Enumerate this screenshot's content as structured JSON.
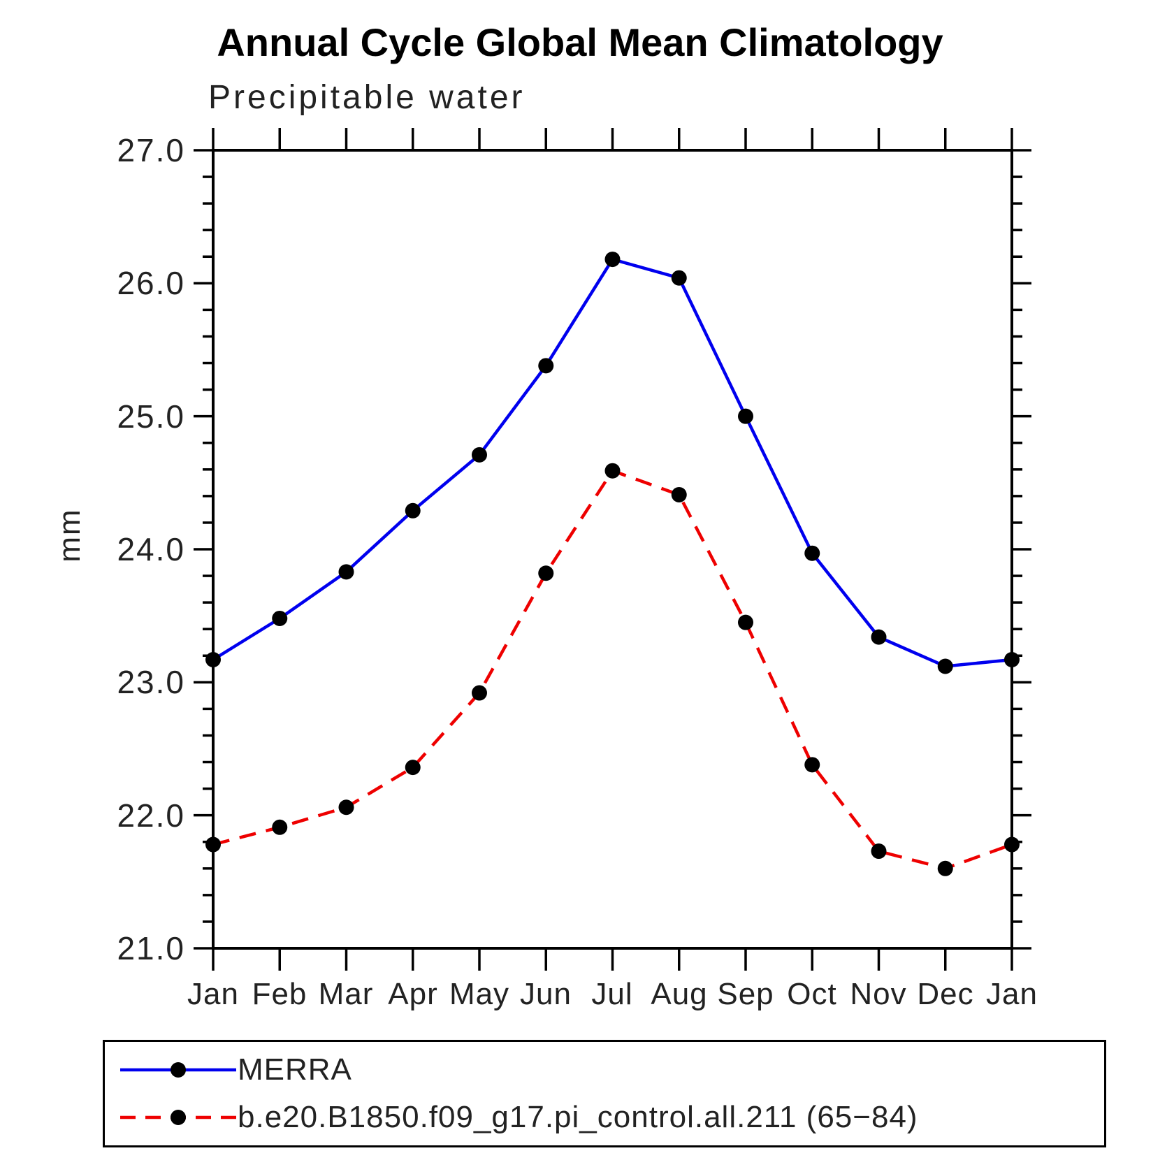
{
  "title": "Annual Cycle Global Mean Climatology",
  "subtitle": "Precipitable water",
  "y_axis": {
    "label": "mm",
    "tick_labels": [
      "27.0",
      "26.0",
      "25.0",
      "24.0",
      "23.0",
      "22.0",
      "21.0"
    ]
  },
  "x_axis": {
    "tick_labels": [
      "Jan",
      "Feb",
      "Mar",
      "Apr",
      "May",
      "Jun",
      "Jul",
      "Aug",
      "Sep",
      "Oct",
      "Nov",
      "Dec",
      "Jan"
    ]
  },
  "legend": {
    "position": "bottom-left",
    "entries": [
      {
        "label": "MERRA",
        "line_style": "solid",
        "line_color": "#0000ee",
        "marker": "filled-circle",
        "marker_color": "#000000"
      },
      {
        "label": "b.e20.B1850.f09_g17.pi_control.all.211 (65−84)",
        "line_style": "dashed",
        "line_color": "#ee0000",
        "marker": "filled-circle",
        "marker_color": "#000000"
      }
    ]
  },
  "chart_data": {
    "type": "line",
    "title": "Annual Cycle Global Mean Climatology",
    "subtitle": "Precipitable water",
    "ylabel": "mm",
    "xlabel": "",
    "categories": [
      "Jan",
      "Feb",
      "Mar",
      "Apr",
      "May",
      "Jun",
      "Jul",
      "Aug",
      "Sep",
      "Oct",
      "Nov",
      "Dec",
      "Jan"
    ],
    "ylim": [
      21.0,
      27.0
    ],
    "y_major_step": 1.0,
    "y_minor_step": 0.2,
    "grid": false,
    "legend_position": "bottom-left",
    "series": [
      {
        "name": "MERRA",
        "color": "#0000ee",
        "style": "solid",
        "marker": "filled-circle",
        "marker_color": "#000000",
        "values": [
          23.17,
          23.48,
          23.83,
          24.29,
          24.71,
          25.38,
          26.18,
          26.04,
          25.0,
          23.97,
          23.34,
          23.12,
          23.17
        ]
      },
      {
        "name": "b.e20.B1850.f09_g17.pi_control.all.211 (65−84)",
        "color": "#ee0000",
        "style": "dashed",
        "marker": "filled-circle",
        "marker_color": "#000000",
        "values": [
          21.78,
          21.91,
          22.06,
          22.36,
          22.92,
          23.82,
          24.59,
          24.41,
          23.45,
          22.38,
          21.73,
          21.6,
          21.78
        ]
      }
    ]
  }
}
